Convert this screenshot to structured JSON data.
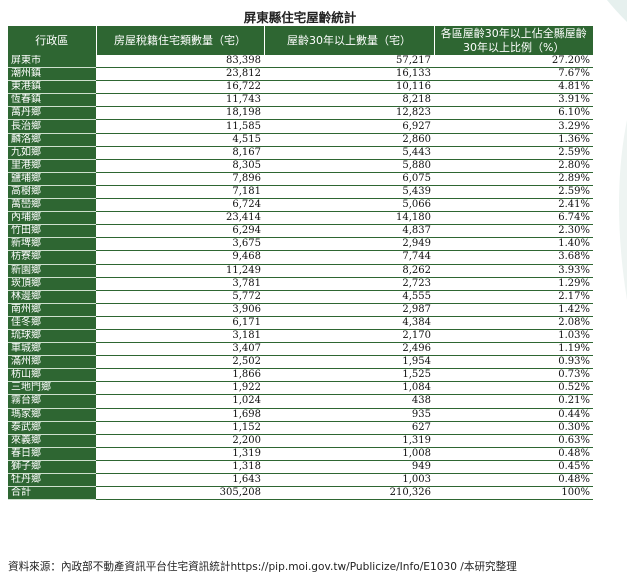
{
  "title": "屏東縣住宅屋齡統計",
  "headers": [
    "行政區",
    "房屋稅籍住宅類數量（宅）",
    "屋齡30年以上數量（宅）",
    "各區屋齡30年以上佔全縣屋齡30年以上比例（%）"
  ],
  "rows": [
    [
      "屏東市",
      "83,398",
      "57,217",
      "27.20%"
    ],
    [
      "潮州鎮",
      "23,812",
      "16,133",
      "7.67%"
    ],
    [
      "東港鎮",
      "16,722",
      "10,116",
      "4.81%"
    ],
    [
      "恆春鎮",
      "11,743",
      "8,218",
      "3.91%"
    ],
    [
      "萬丹鄉",
      "18,198",
      "12,823",
      "6.10%"
    ],
    [
      "長治鄉",
      "11,585",
      "6,927",
      "3.29%"
    ],
    [
      "麟洛鄉",
      "4,515",
      "2,860",
      "1.36%"
    ],
    [
      "九如鄉",
      "8,167",
      "5,443",
      "2.59%"
    ],
    [
      "里港鄉",
      "8,305",
      "5,880",
      "2.80%"
    ],
    [
      "鹽埔鄉",
      "7,896",
      "6,075",
      "2.89%"
    ],
    [
      "高樹鄉",
      "7,181",
      "5,439",
      "2.59%"
    ],
    [
      "萬巒鄉",
      "6,724",
      "5,066",
      "2.41%"
    ],
    [
      "內埔鄉",
      "23,414",
      "14,180",
      "6.74%"
    ],
    [
      "竹田鄉",
      "6,294",
      "4,837",
      "2.30%"
    ],
    [
      "新埤鄉",
      "3,675",
      "2,949",
      "1.40%"
    ],
    [
      "枋寮鄉",
      "9,468",
      "7,744",
      "3.68%"
    ],
    [
      "新園鄉",
      "11,249",
      "8,262",
      "3.93%"
    ],
    [
      "崁頂鄉",
      "3,781",
      "2,723",
      "1.29%"
    ],
    [
      "林邊鄉",
      "5,772",
      "4,555",
      "2.17%"
    ],
    [
      "南州鄉",
      "3,906",
      "2,987",
      "1.42%"
    ],
    [
      "佳冬鄉",
      "6,171",
      "4,384",
      "2.08%"
    ],
    [
      "琉球鄉",
      "3,181",
      "2,170",
      "1.03%"
    ],
    [
      "車城鄉",
      "3,407",
      "2,496",
      "1.19%"
    ],
    [
      "滿州鄉",
      "2,502",
      "1,954",
      "0.93%"
    ],
    [
      "枋山鄉",
      "1,866",
      "1,525",
      "0.73%"
    ],
    [
      "三地門鄉",
      "1,922",
      "1,084",
      "0.52%"
    ],
    [
      "霧台鄉",
      "1,024",
      "438",
      "0.21%"
    ],
    [
      "瑪家鄉",
      "1,698",
      "935",
      "0.44%"
    ],
    [
      "泰武鄉",
      "1,152",
      "627",
      "0.30%"
    ],
    [
      "來義鄉",
      "2,200",
      "1,319",
      "0.63%"
    ],
    [
      "春日鄉",
      "1,319",
      "1,008",
      "0.48%"
    ],
    [
      "獅子鄉",
      "1,318",
      "949",
      "0.45%"
    ],
    [
      "牡丹鄉",
      "1,643",
      "1,003",
      "0.48%"
    ],
    [
      "合計",
      "305,208",
      "210,326",
      "100%"
    ]
  ],
  "source": "資料來源：內政部不動產資訊平台住宅資訊統計https://pip.moi.gov.tw/Publicize/Info/E1030 /本研究整理",
  "colors": {
    "header_bg": "#2e6632",
    "header_text": "#ffffff"
  }
}
